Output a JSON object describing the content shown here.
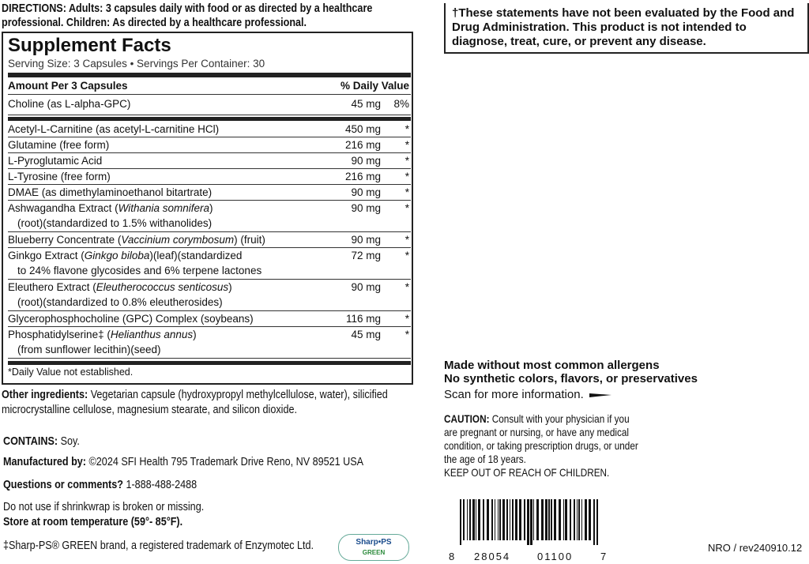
{
  "directions": {
    "label": "DIRECTIONS:",
    "text": "Adults: 3 capsules daily with food or as directed by a healthcare professional. Children: As directed by a healthcare professional."
  },
  "facts": {
    "title": "Supplement Facts",
    "serving": "Serving Size: 3 Capsules • Servings Per Container: 30",
    "amount_header": "Amount Per 3 Capsules",
    "dv_header": "% Daily Value",
    "top_rows": [
      {
        "name": "Choline (as L-alpha-GPC)",
        "amount": "45 mg",
        "dv": "8%"
      }
    ],
    "rows": [
      {
        "name": "Acetyl-L-Carnitine (as acetyl-L-carnitine HCl)",
        "amount": "450 mg",
        "dv": "*"
      },
      {
        "name": "Glutamine (free form)",
        "amount": "216 mg",
        "dv": "*"
      },
      {
        "name": "L-Pyroglutamic Acid",
        "amount": "90 mg",
        "dv": "*"
      },
      {
        "name": "L-Tyrosine (free form)",
        "amount": "216 mg",
        "dv": "*"
      },
      {
        "name": "DMAE (as dimethylaminoethanol bitartrate)",
        "amount": "90 mg",
        "dv": "*"
      },
      {
        "name": "Ashwagandha Extract (",
        "latin": "Withania somnifera",
        "after": ")",
        "detail": "(root)(standardized to 1.5% withanolides)",
        "amount": "90 mg",
        "dv": "*"
      },
      {
        "name": "Blueberry Concentrate (",
        "latin": "Vaccinium corymbosum",
        "after": ") (fruit)",
        "amount": "90 mg",
        "dv": "*"
      },
      {
        "name": "Ginkgo Extract (",
        "latin": "Ginkgo biloba",
        "after": ")(leaf)(standardized",
        "detail": "to 24% flavone glycosides and 6% terpene lactones",
        "amount": "72 mg",
        "dv": "*"
      },
      {
        "name": "Eleuthero Extract (",
        "latin": "Eleutherococcus senticosus",
        "after": ")",
        "detail": "(root)(standardized to 0.8% eleutherosides)",
        "amount": "90 mg",
        "dv": "*"
      },
      {
        "name": "Glycerophosphocholine (GPC) Complex (soybeans)",
        "amount": "116 mg",
        "dv": "*"
      },
      {
        "name": "Phosphatidylserine‡ (",
        "latin": "Helianthus annus",
        "after": ")",
        "detail": "(from sunflower lecithin)(seed)",
        "amount": "45 mg",
        "dv": "*"
      }
    ],
    "footnote": "*Daily Value not established."
  },
  "other_ingredients": {
    "label": "Other ingredients:",
    "text": "Vegetarian capsule (hydroxypropyl methylcellulose, water), silicified microcrystalline cellulose, magnesium stearate, and silicon dioxide."
  },
  "contains": {
    "label": "CONTAINS:",
    "text": "Soy."
  },
  "manufacturer": {
    "label": "Manufactured by:",
    "text": "©2024 SFI Health 795 Trademark Drive Reno, NV 89521 USA"
  },
  "questions": {
    "label": "Questions or comments?",
    "text": "1-888-488-2488"
  },
  "shrinkwrap": "Do not use if shrinkwrap is broken or missing.",
  "storage": "Store at room temperature (59°- 85°F).",
  "trademark": "‡Sharp-PS® GREEN brand, a registered trademark of Enzymotec Ltd.",
  "logo": {
    "brand": "Sharp•PS",
    "sub": "GREEN"
  },
  "disclaimer": "†These statements have not been evaluated by the Food and Drug Administration. This product is not intended to diagnose, treat, cure, or prevent any disease.",
  "allergens": [
    "Made without most common allergens",
    "No synthetic colors, flavors, or preservatives"
  ],
  "scan": "Scan for more information.",
  "caution": {
    "label": "CAUTION:",
    "text": "Consult with your physician if you are pregnant or nursing, or have any medical condition, or taking prescription drugs, or under the age of 18 years.",
    "keep_out": "KEEP OUT OF REACH OF CHILDREN."
  },
  "barcode": [
    "8",
    "28054",
    "01100",
    "7"
  ],
  "revision": "NRO / rev240910.12"
}
